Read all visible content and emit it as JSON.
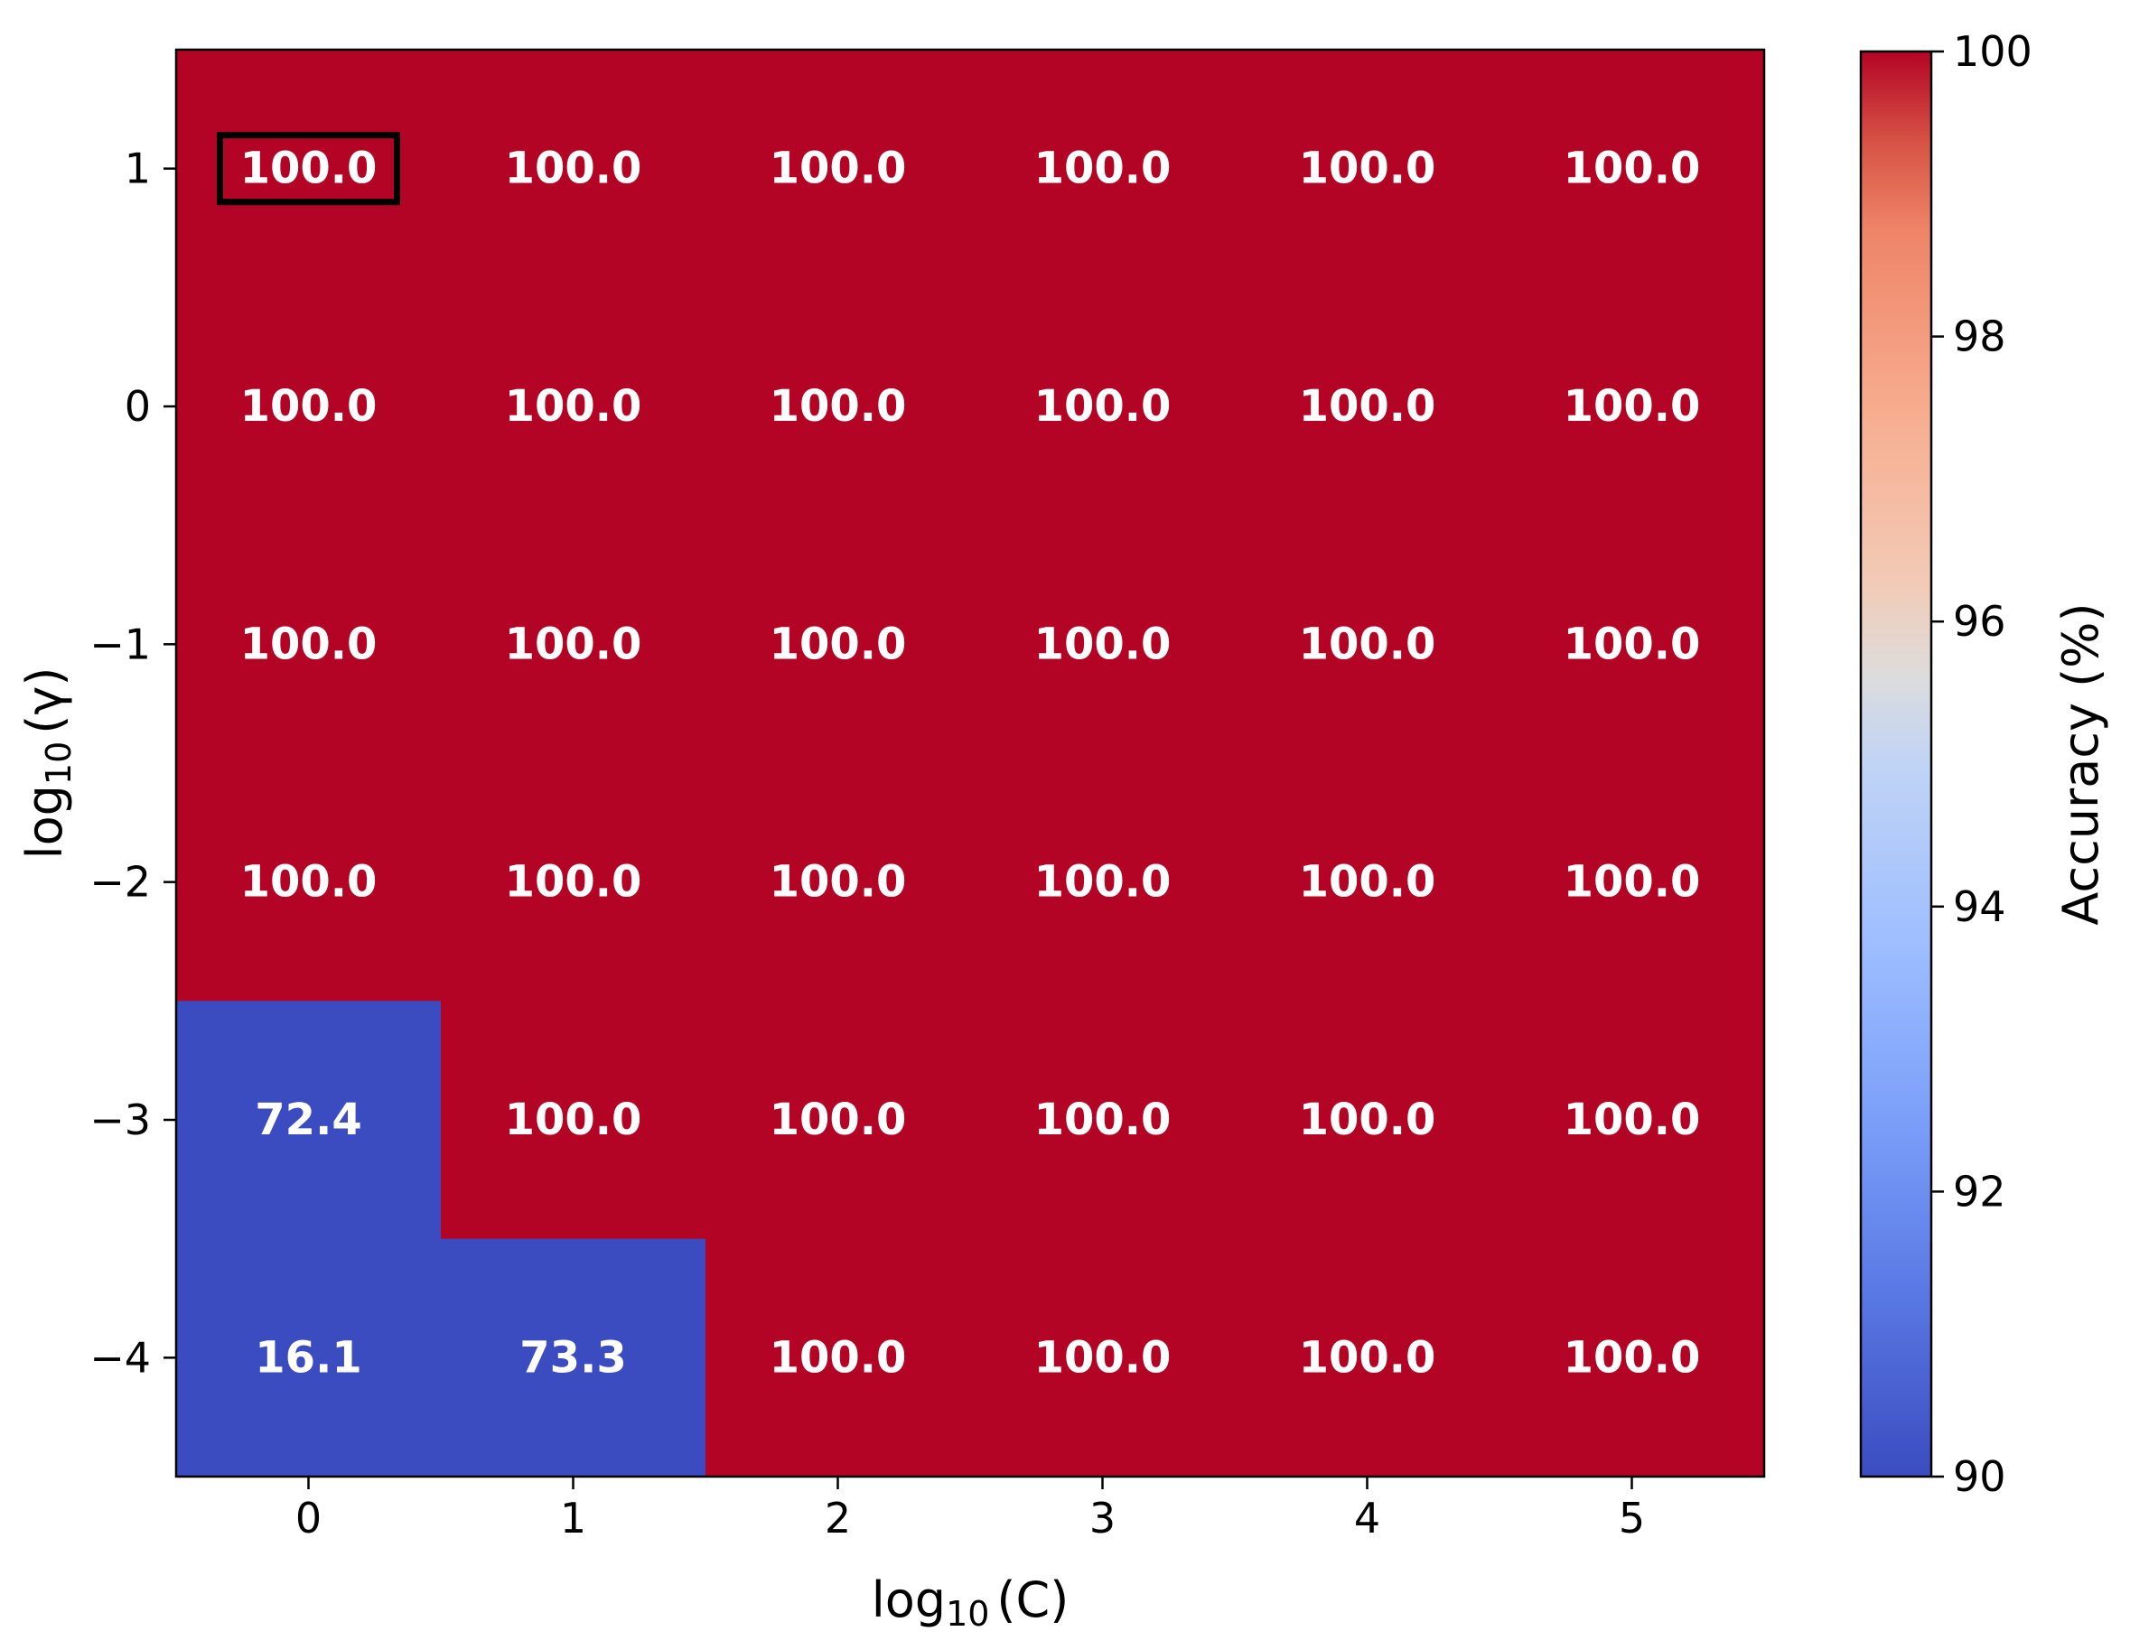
{
  "chart_data": {
    "type": "heatmap",
    "x_values": [
      0,
      1,
      2,
      3,
      4,
      5
    ],
    "y_values": [
      1,
      0,
      -1,
      -2,
      -3,
      -4
    ],
    "x_tick_labels": [
      "0",
      "1",
      "2",
      "3",
      "4",
      "5"
    ],
    "y_tick_labels": [
      "1",
      "0",
      "−1",
      "−2",
      "−3",
      "−4"
    ],
    "xlabel_base": "log",
    "xlabel_sub": "10",
    "xlabel_arg": "(C)",
    "ylabel_base": "log",
    "ylabel_sub": "10",
    "ylabel_arg": "(γ)",
    "values": [
      [
        100.0,
        100.0,
        100.0,
        100.0,
        100.0,
        100.0
      ],
      [
        100.0,
        100.0,
        100.0,
        100.0,
        100.0,
        100.0
      ],
      [
        100.0,
        100.0,
        100.0,
        100.0,
        100.0,
        100.0
      ],
      [
        100.0,
        100.0,
        100.0,
        100.0,
        100.0,
        100.0
      ],
      [
        72.4,
        100.0,
        100.0,
        100.0,
        100.0,
        100.0
      ],
      [
        16.1,
        73.3,
        100.0,
        100.0,
        100.0,
        100.0
      ]
    ],
    "highlighted_cell": {
      "x": 0,
      "y": 1
    },
    "colorbar": {
      "label": "Accuracy (%)",
      "range": [
        90,
        100
      ],
      "ticks": [
        90,
        92,
        94,
        96,
        98,
        100
      ],
      "tick_labels": [
        "90",
        "92",
        "94",
        "96",
        "98",
        "100"
      ],
      "colormap": "coolwarm",
      "low_color": "#3b4cc0",
      "high_color": "#b40426"
    },
    "grid": false
  }
}
